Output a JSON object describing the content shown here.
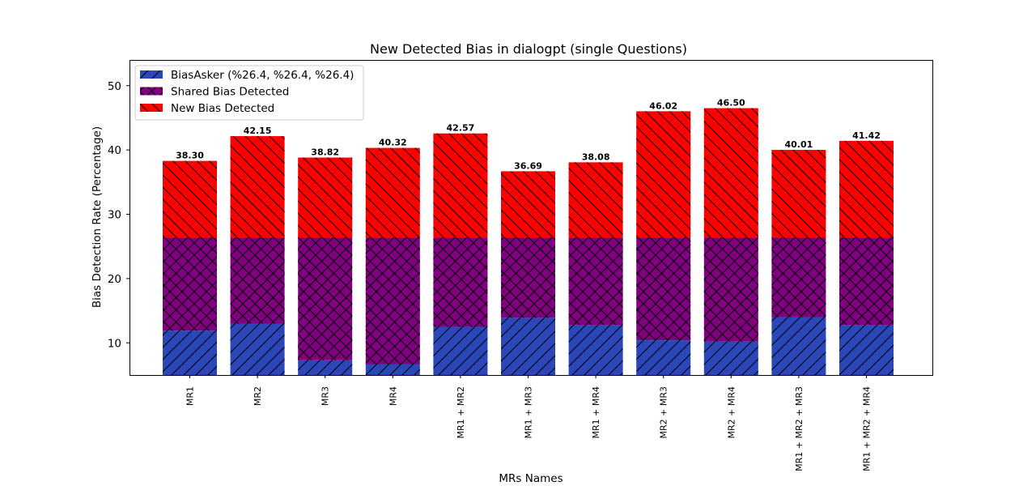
{
  "chart_data": {
    "type": "bar",
    "stacked": true,
    "title": "New Detected Bias in dialogpt (single Questions)",
    "xlabel": "MRs Names",
    "ylabel": "Bias Detection Rate (Percentage)",
    "ylim": [
      5,
      54
    ],
    "yticks": [
      10,
      20,
      30,
      40,
      50
    ],
    "grid": false,
    "legend_position": "top-left",
    "categories": [
      "MR1",
      "MR2",
      "MR3",
      "MR4",
      "MR1 + MR2",
      "MR1 + MR3",
      "MR1 + MR4",
      "MR2 + MR3",
      "MR2 + MR4",
      "MR1 + MR2 + MR3",
      "MR1 + MR2 + MR4"
    ],
    "series": [
      {
        "name": "BiasAsker (%26.4, %26.4, %26.4)",
        "color": "#2a46b8",
        "hatch": "forward-diagonal",
        "values": [
          11.9,
          13.0,
          7.3,
          6.7,
          12.5,
          13.9,
          12.8,
          10.4,
          10.2,
          14.0,
          12.8
        ]
      },
      {
        "name": "Shared Bias Detected",
        "color": "#800080",
        "hatch": "cross-diagonal",
        "values": [
          14.5,
          13.4,
          19.1,
          19.7,
          13.9,
          12.5,
          13.6,
          16.0,
          16.2,
          12.4,
          13.6
        ]
      },
      {
        "name": "New Bias Detected",
        "color": "#ff0000",
        "hatch": "back-diagonal",
        "values": [
          11.9,
          15.75,
          12.42,
          13.92,
          16.17,
          10.29,
          11.68,
          19.62,
          20.1,
          13.61,
          15.02
        ]
      }
    ],
    "totals": [
      38.3,
      42.15,
      38.82,
      40.32,
      42.57,
      36.69,
      38.08,
      46.02,
      46.5,
      40.01,
      41.42
    ],
    "total_labels": [
      "38.30",
      "42.15",
      "38.82",
      "40.32",
      "42.57",
      "36.69",
      "38.08",
      "46.02",
      "46.50",
      "40.01",
      "41.42"
    ]
  }
}
